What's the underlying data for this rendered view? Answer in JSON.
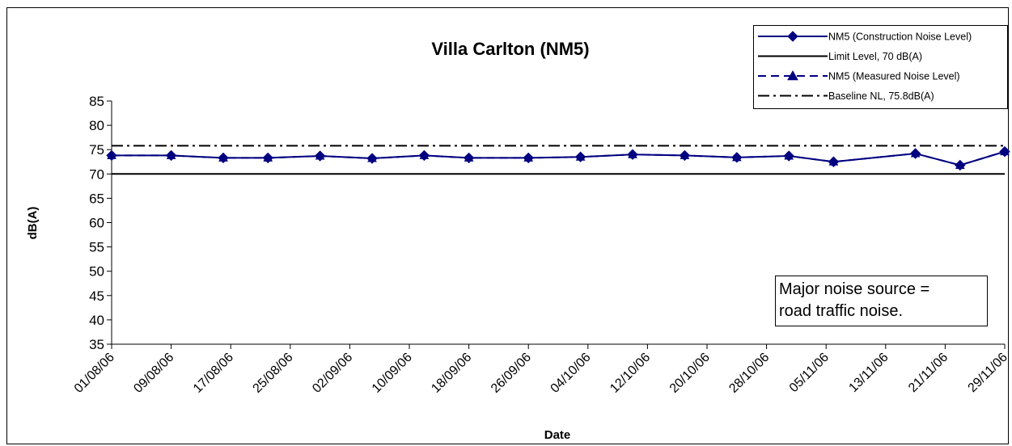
{
  "chart_data": {
    "type": "line",
    "title": "Villa Carlton (NM5)",
    "xlabel": "Date",
    "ylabel": "dB(A)",
    "ylim": [
      35,
      85
    ],
    "yticks": [
      35,
      40,
      45,
      50,
      55,
      60,
      65,
      70,
      75,
      80,
      85
    ],
    "xlim": [
      "01/08/06",
      "29/11/06"
    ],
    "xticks": [
      "01/08/06",
      "09/08/06",
      "17/08/06",
      "25/08/06",
      "02/09/06",
      "10/09/06",
      "18/09/06",
      "26/09/06",
      "04/10/06",
      "12/10/06",
      "20/10/06",
      "28/10/06",
      "05/11/06",
      "13/11/06",
      "21/11/06",
      "29/11/06"
    ],
    "grid": false,
    "legend_position": "top-right",
    "series": [
      {
        "name": "NM5 (Construction Noise Level)",
        "color": "#000080",
        "marker": "diamond",
        "style": "solid",
        "x": [
          "01/08/06",
          "09/08/06",
          "16/08/06",
          "22/08/06",
          "29/08/06",
          "05/09/06",
          "12/09/06",
          "18/09/06",
          "26/09/06",
          "03/10/06",
          "10/10/06",
          "17/10/06",
          "24/10/06",
          "31/10/06",
          "06/11/06",
          "17/11/06",
          "23/11/06",
          "29/11/06"
        ],
        "y": [
          73.8,
          73.8,
          73.3,
          73.3,
          73.7,
          73.2,
          73.8,
          73.3,
          73.3,
          73.5,
          74.0,
          73.8,
          73.4,
          73.7,
          72.5,
          74.2,
          71.8,
          74.6
        ]
      },
      {
        "name": "Limit Level, 70 dB(A)",
        "color": "#000000",
        "style": "solid",
        "value": 70
      },
      {
        "name": "NM5 (Measured Noise Level)",
        "color": "#000080",
        "marker": "triangle",
        "style": "dashed",
        "x": [
          "01/08/06",
          "09/08/06",
          "16/08/06",
          "22/08/06",
          "29/08/06",
          "05/09/06",
          "12/09/06",
          "18/09/06",
          "26/09/06",
          "03/10/06",
          "10/10/06",
          "17/10/06",
          "24/10/06",
          "31/10/06",
          "06/11/06",
          "17/11/06",
          "23/11/06",
          "29/11/06"
        ],
        "y": [
          73.8,
          73.8,
          73.3,
          73.3,
          73.7,
          73.2,
          73.8,
          73.3,
          73.3,
          73.5,
          74.0,
          73.8,
          73.4,
          73.7,
          72.5,
          74.2,
          71.8,
          74.6
        ]
      },
      {
        "name": "Baseline NL, 75.8dB(A)",
        "color": "#000000",
        "style": "dash-dot",
        "value": 75.8
      }
    ],
    "annotations": [
      {
        "lines": [
          "Major noise source =",
          "road traffic noise."
        ],
        "position": "lower-right"
      }
    ]
  }
}
